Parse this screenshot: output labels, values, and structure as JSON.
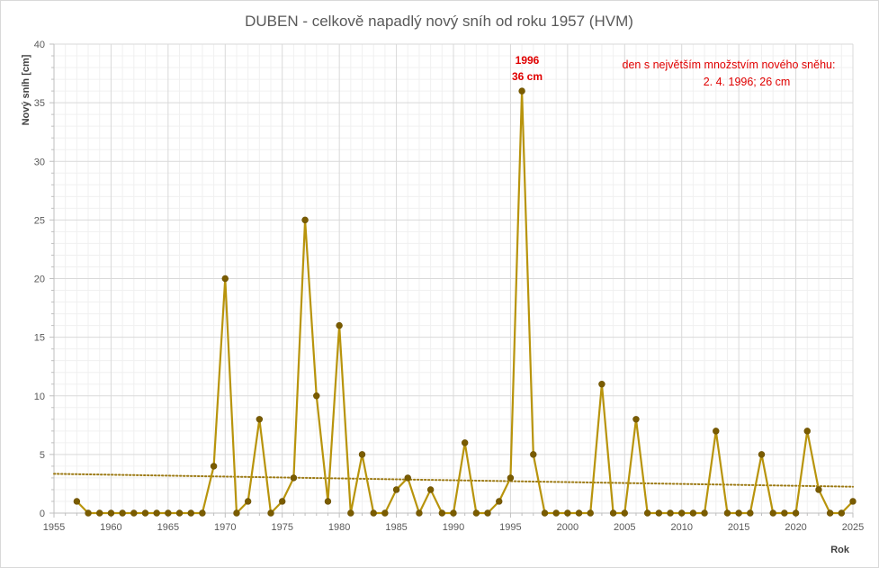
{
  "chart_data": {
    "type": "line",
    "title": "DUBEN - celkově napadlý nový sníh od roku 1957 (HVM)",
    "xlabel": "Rok",
    "ylabel": "Nový sníh [cm]",
    "xlim": [
      1955,
      2025
    ],
    "ylim": [
      0,
      40
    ],
    "x_ticks": [
      1955,
      1960,
      1965,
      1970,
      1975,
      1980,
      1985,
      1990,
      1995,
      2000,
      2005,
      2010,
      2015,
      2020,
      2025
    ],
    "y_ticks": [
      0,
      5,
      10,
      15,
      20,
      25,
      30,
      35,
      40
    ],
    "grid": true,
    "line_color": "#b8940c",
    "marker_color": "#7a5c00",
    "trend_color": "#9c7a14",
    "annotation_color": "#e00000",
    "series": [
      {
        "x": [
          1957,
          1958,
          1959,
          1960,
          1961,
          1962,
          1963,
          1964,
          1965,
          1966,
          1967,
          1968,
          1969,
          1970,
          1971,
          1972,
          1973,
          1974,
          1975,
          1976,
          1977,
          1978,
          1979,
          1980,
          1981,
          1982,
          1983,
          1984,
          1985,
          1986,
          1987,
          1988,
          1989,
          1990,
          1991,
          1992,
          1993,
          1994,
          1995,
          1996,
          1997,
          1998,
          1999,
          2000,
          2001,
          2002,
          2003,
          2004,
          2005,
          2006,
          2007,
          2008,
          2009,
          2010,
          2011,
          2012,
          2013,
          2014,
          2015,
          2016,
          2017,
          2018,
          2019,
          2020,
          2021,
          2022,
          2023,
          2024,
          2025
        ],
        "values": [
          1,
          0,
          0,
          0,
          0,
          0,
          0,
          0,
          0,
          0,
          0,
          0,
          4,
          20,
          0,
          1,
          8,
          0,
          1,
          3,
          25,
          10,
          1,
          16,
          0,
          5,
          0,
          0,
          2,
          3,
          0,
          2,
          0,
          0,
          6,
          0,
          0,
          1,
          3,
          36,
          5,
          0,
          0,
          0,
          0,
          0,
          11,
          0,
          0,
          8,
          0,
          0,
          0,
          0,
          0,
          0,
          7,
          0,
          0,
          0,
          5,
          0,
          0,
          0,
          7,
          2,
          0,
          0,
          1
        ]
      }
    ],
    "trendline": {
      "type": "linear",
      "start": [
        1955,
        3.35
      ],
      "end": [
        2025,
        2.25
      ]
    },
    "annotations": {
      "peak": {
        "x": 1996,
        "y": 36,
        "line1": "1996",
        "line2": "36 cm"
      },
      "note": {
        "line1": "den s největším množstvím nového sněhu:",
        "line2": "2. 4. 1996;  26 cm"
      }
    }
  }
}
